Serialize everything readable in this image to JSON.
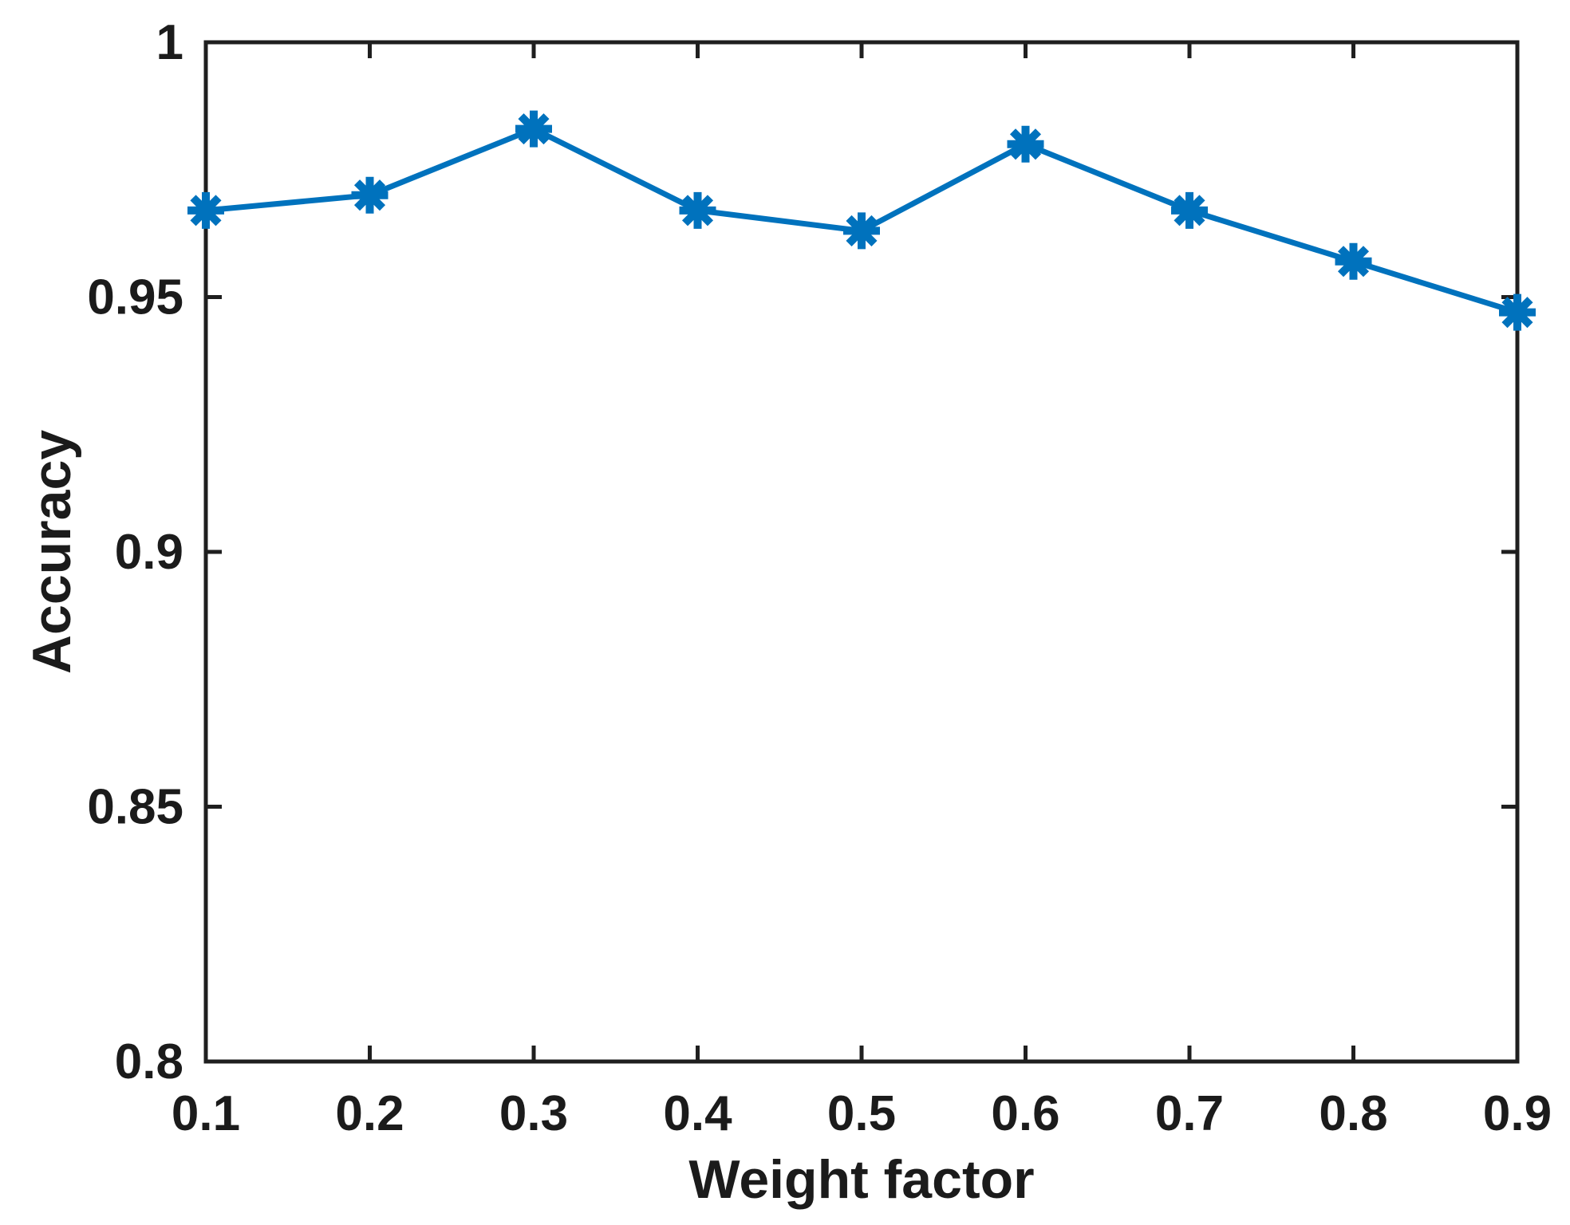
{
  "chart_data": {
    "type": "line",
    "title": "",
    "xlabel": "Weight factor",
    "ylabel": "Accuracy",
    "x": [
      0.1,
      0.2,
      0.3,
      0.4,
      0.5,
      0.6,
      0.7,
      0.8,
      0.9
    ],
    "y": [
      0.967,
      0.97,
      0.983,
      0.967,
      0.963,
      0.98,
      0.967,
      0.957,
      0.947
    ],
    "xlim": [
      0.1,
      0.9
    ],
    "ylim": [
      0.8,
      1.0
    ],
    "xticks": {
      "values": [
        0.1,
        0.2,
        0.3,
        0.4,
        0.5,
        0.6,
        0.7,
        0.8,
        0.9
      ],
      "labels": [
        "0.1",
        "0.2",
        "0.3",
        "0.4",
        "0.5",
        "0.6",
        "0.7",
        "0.8",
        "0.9"
      ]
    },
    "yticks": {
      "values": [
        0.8,
        0.85,
        0.9,
        0.95,
        1.0
      ],
      "labels": [
        "0.8",
        "0.85",
        "0.9",
        "0.95",
        "1"
      ]
    },
    "grid": false,
    "legend": null,
    "line_color": "#0072BD",
    "marker": "asterisk",
    "axis_color": "#1f1f1f",
    "text_color": "#1b1b1b",
    "background": "#ffffff"
  }
}
